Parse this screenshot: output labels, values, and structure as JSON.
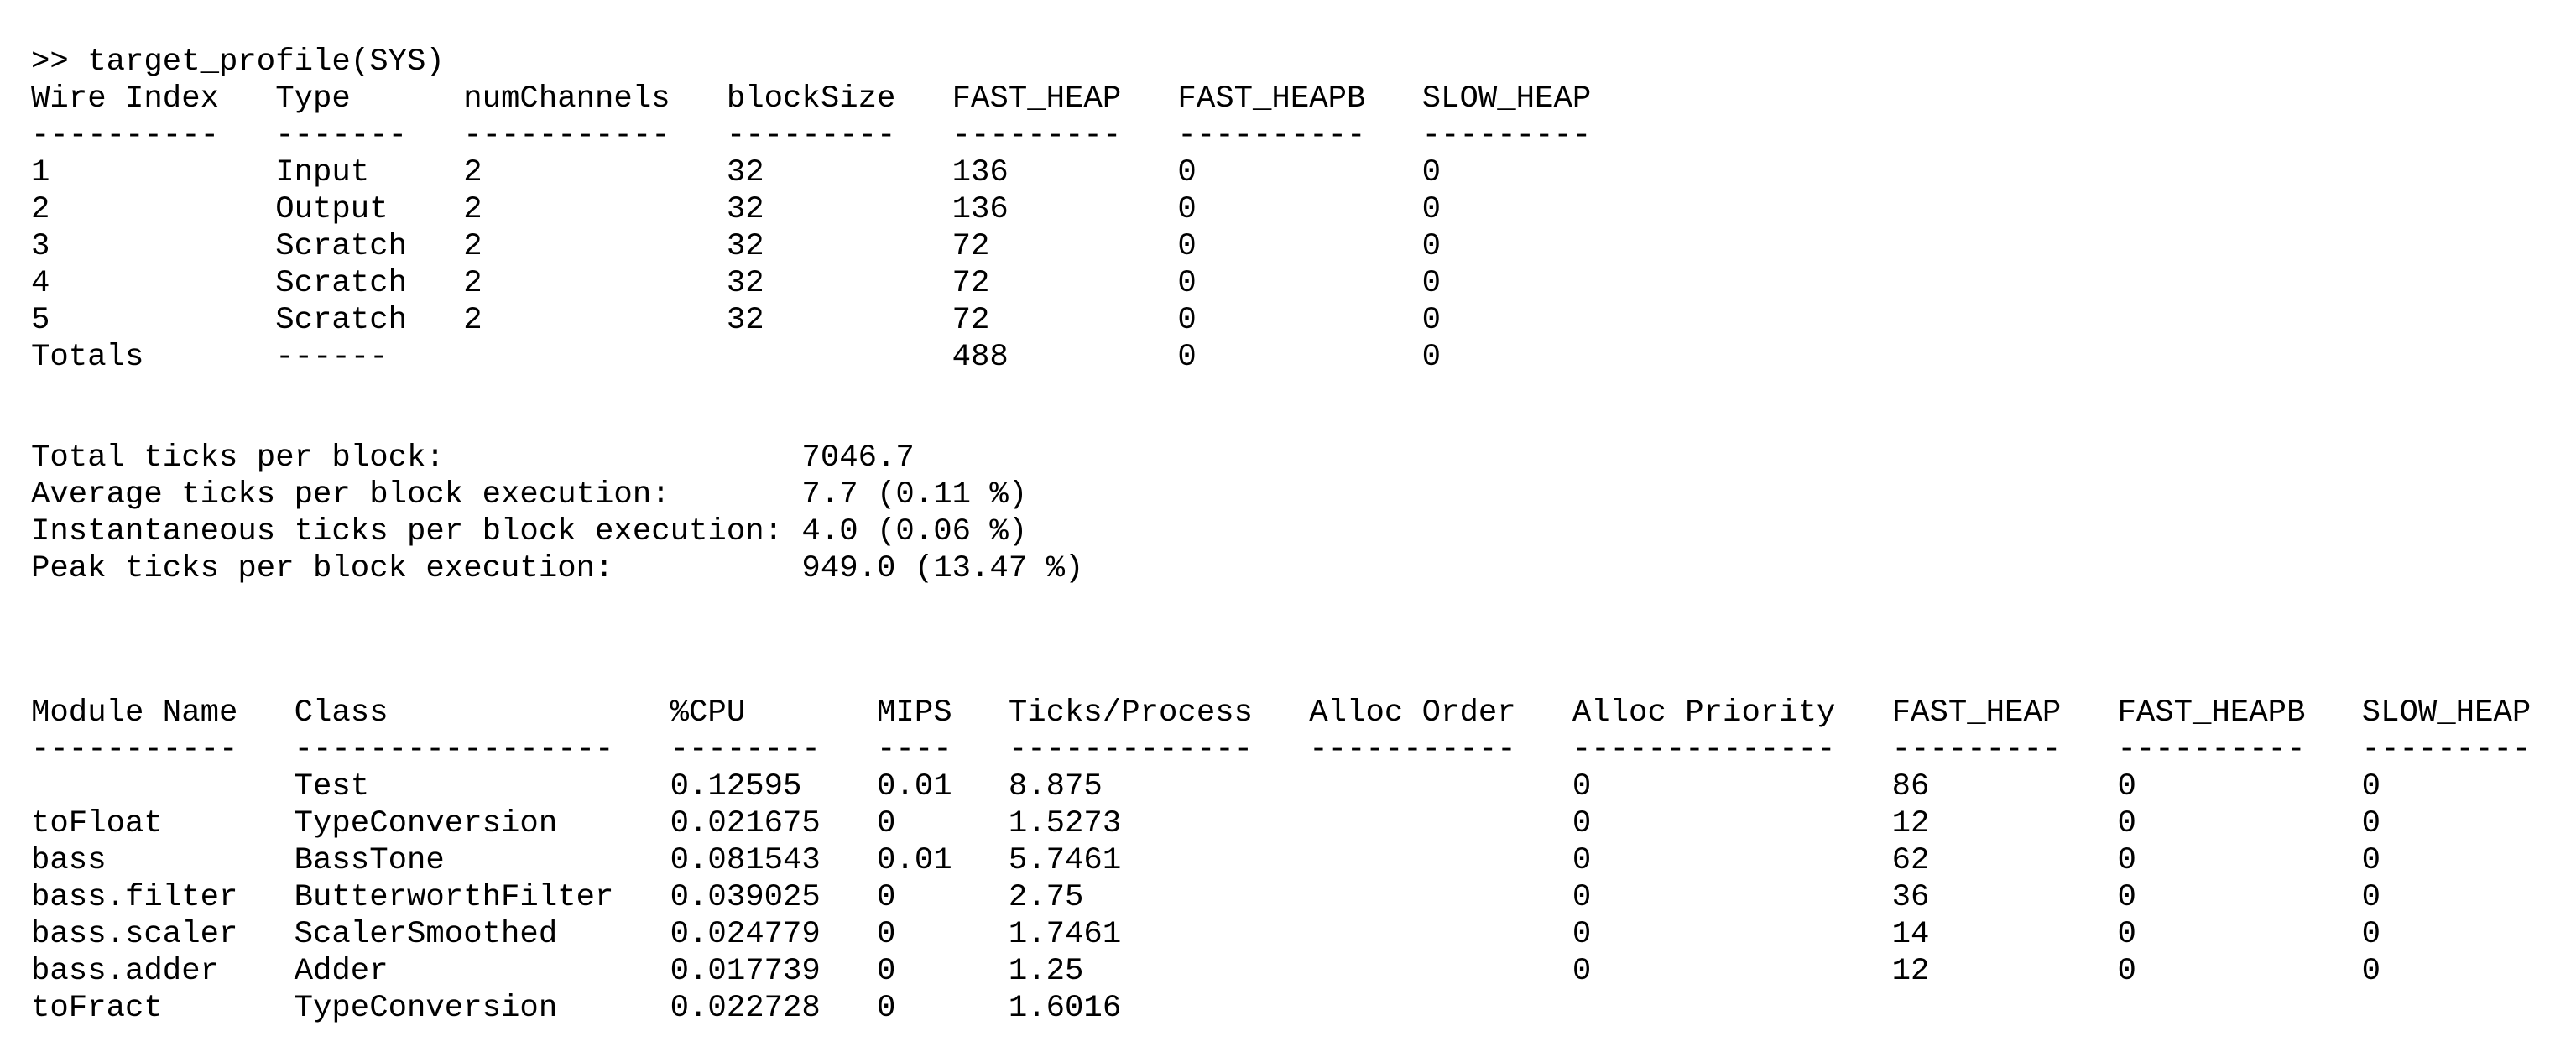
{
  "terminal": {
    "background_color": "#ffffff",
    "text_color": "#000000",
    "prompt_line": ">> target_profile(SYS)"
  },
  "wire_table": {
    "columns": [
      "Wire Index",
      "Type",
      "numChannels",
      "blockSize",
      "FAST_HEAP",
      "FAST_HEAPB",
      "SLOW_HEAP"
    ],
    "separators": [
      "----------",
      "-------",
      "-----------",
      "---------",
      "---------",
      "----------",
      "---------"
    ],
    "col_starts": [
      0,
      13,
      23,
      37,
      49,
      61,
      74
    ],
    "rows": [
      [
        "1",
        "Input",
        "2",
        "32",
        "136",
        "0",
        "0"
      ],
      [
        "2",
        "Output",
        "2",
        "32",
        "136",
        "0",
        "0"
      ],
      [
        "3",
        "Scratch",
        "2",
        "32",
        "72",
        "0",
        "0"
      ],
      [
        "4",
        "Scratch",
        "2",
        "32",
        "72",
        "0",
        "0"
      ],
      [
        "5",
        "Scratch",
        "2",
        "32",
        "72",
        "0",
        "0"
      ],
      [
        "Totals",
        "------",
        "",
        "",
        "488",
        "0",
        "0"
      ]
    ]
  },
  "ticks_summary": {
    "value_column": 41,
    "lines": [
      {
        "label": "Total ticks per block:",
        "value": "7046.7"
      },
      {
        "label": "Average ticks per block execution:",
        "value": "7.7 (0.11 %)"
      },
      {
        "label": "Instantaneous ticks per block execution:",
        "value": "4.0 (0.06 %)"
      },
      {
        "label": "Peak ticks per block execution:",
        "value": "949.0 (13.47 %)"
      }
    ]
  },
  "module_table": {
    "columns": [
      "Module Name",
      "Class",
      "%CPU",
      "MIPS",
      "Ticks/Process",
      "Alloc Order",
      "Alloc Priority",
      "FAST_HEAP",
      "FAST_HEAPB",
      "SLOW_HEAP"
    ],
    "separators": [
      "-----------",
      "-----------------",
      "--------",
      "----",
      "-------------",
      "-----------",
      "--------------",
      "---------",
      "----------",
      "---------"
    ],
    "col_starts": [
      0,
      14,
      34,
      45,
      52,
      68,
      82,
      99,
      111,
      124
    ],
    "rows": [
      [
        "",
        "Test",
        "0.12595",
        "0.01",
        "8.875",
        "",
        "0",
        "86",
        "0",
        "0"
      ],
      [
        "toFloat",
        "TypeConversion",
        "0.021675",
        "0",
        "1.5273",
        "",
        "0",
        "12",
        "0",
        "0"
      ],
      [
        "bass",
        "BassTone",
        "0.081543",
        "0.01",
        "5.7461",
        "",
        "0",
        "62",
        "0",
        "0"
      ],
      [
        "bass.filter",
        "ButterworthFilter",
        "0.039025",
        "0",
        "2.75",
        "",
        "0",
        "36",
        "0",
        "0"
      ],
      [
        "bass.scaler",
        "ScalerSmoothed",
        "0.024779",
        "0",
        "1.7461",
        "",
        "0",
        "14",
        "0",
        "0"
      ],
      [
        "bass.adder",
        "Adder",
        "0.017739",
        "0",
        "1.25",
        "",
        "0",
        "12",
        "0",
        "0"
      ],
      [
        "toFract",
        "TypeConversion",
        "0.022728",
        "0",
        "1.6016",
        "",
        "",
        "",
        "",
        ""
      ]
    ]
  }
}
